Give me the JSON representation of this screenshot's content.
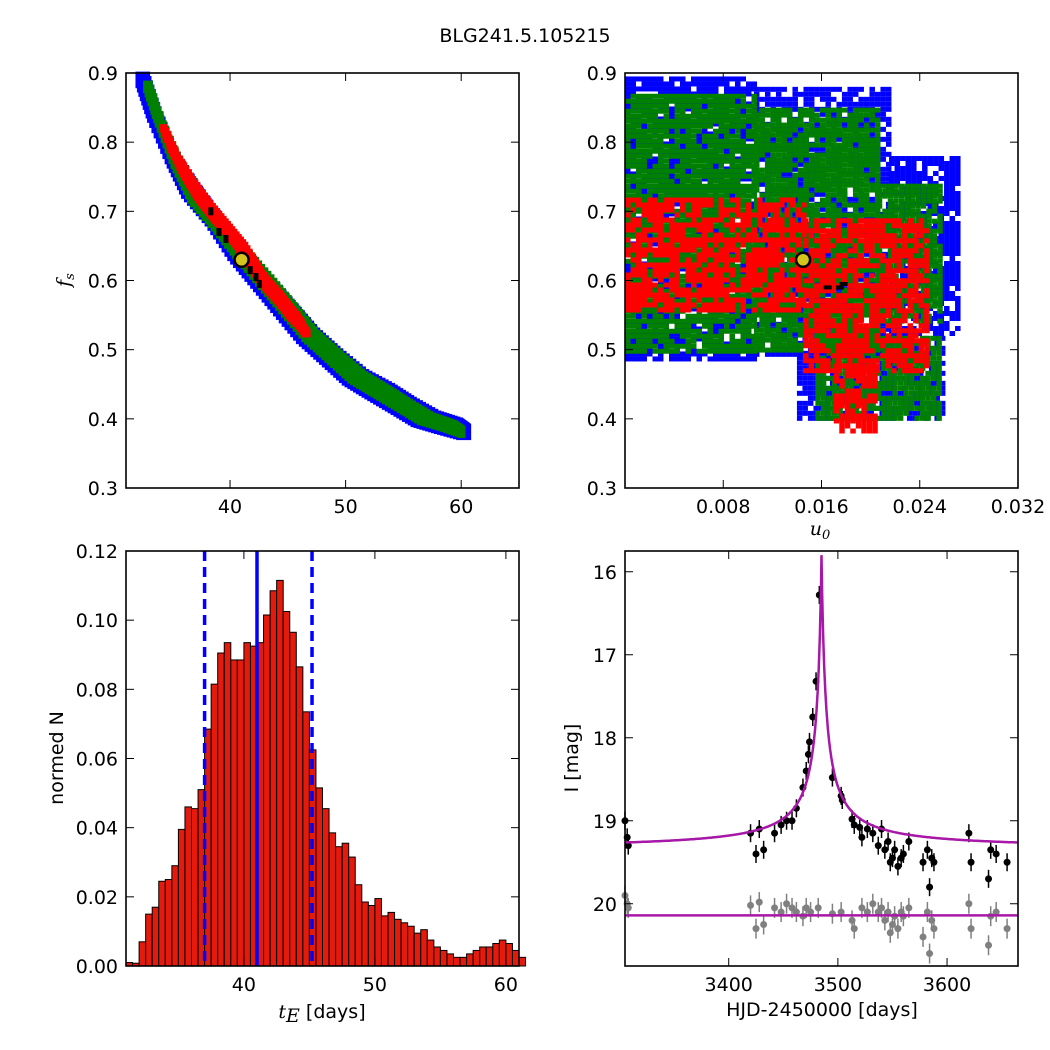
{
  "suptitle": "BLG241.5.105215",
  "colors": {
    "sigma1": "#ff0000",
    "sigma2": "#008000",
    "sigma3": "#0000ff",
    "best": "#000000",
    "marker_face": "#d4c41e",
    "hist_bar": "#e31a0c",
    "model": "#a818a8",
    "residual": "#808080"
  },
  "chart_data": [
    {
      "id": "fs_vs_tE",
      "type": "heatmap",
      "xlabel": "",
      "ylabel": "f_s",
      "xlim": [
        31,
        65
      ],
      "ylim": [
        0.3,
        0.9
      ],
      "xticks": [
        40,
        50,
        60
      ],
      "yticks": [
        0.3,
        0.4,
        0.5,
        0.6,
        0.7,
        0.8,
        0.9
      ],
      "bands": {
        "blue": [
          [
            32.0,
            0.89,
            32.9
          ],
          [
            33.0,
            0.84,
            33.9
          ],
          [
            34.5,
            0.78,
            35.3
          ],
          [
            36.0,
            0.73,
            37.2
          ],
          [
            38.0,
            0.69,
            39.0
          ],
          [
            40.0,
            0.64,
            41.2
          ],
          [
            42.0,
            0.6,
            43.3
          ],
          [
            44.0,
            0.56,
            45.4
          ],
          [
            46.0,
            0.52,
            47.5
          ],
          [
            48.0,
            0.49,
            49.5
          ],
          [
            50.0,
            0.46,
            51.7
          ],
          [
            52.0,
            0.44,
            53.9
          ],
          [
            54.0,
            0.42,
            55.8
          ],
          [
            56.0,
            0.4,
            57.9
          ],
          [
            58.0,
            0.39,
            59.8
          ],
          [
            60.0,
            0.38,
            60.8
          ]
        ],
        "green": [
          [
            32.6,
            0.88,
            33.2
          ],
          [
            33.6,
            0.83,
            34.2
          ],
          [
            35.0,
            0.77,
            35.8
          ],
          [
            36.5,
            0.72,
            37.6
          ],
          [
            38.5,
            0.68,
            39.4
          ],
          [
            40.4,
            0.64,
            41.5
          ],
          [
            42.4,
            0.6,
            43.6
          ],
          [
            44.4,
            0.56,
            45.6
          ],
          [
            46.4,
            0.52,
            47.6
          ],
          [
            48.4,
            0.49,
            49.6
          ],
          [
            50.4,
            0.46,
            51.7
          ],
          [
            52.4,
            0.44,
            53.7
          ],
          [
            54.4,
            0.42,
            55.6
          ],
          [
            56.4,
            0.4,
            57.6
          ],
          [
            58.4,
            0.39,
            59.4
          ],
          [
            60.0,
            0.38,
            60.4
          ]
        ],
        "red": [
          [
            34.0,
            0.82,
            34.5
          ],
          [
            35.0,
            0.78,
            35.6
          ],
          [
            36.3,
            0.74,
            37.1
          ],
          [
            37.5,
            0.71,
            38.4
          ],
          [
            39.0,
            0.68,
            39.9
          ],
          [
            40.5,
            0.65,
            41.4
          ],
          [
            42.0,
            0.61,
            42.9
          ],
          [
            43.5,
            0.58,
            44.4
          ],
          [
            45.0,
            0.55,
            45.9
          ],
          [
            46.5,
            0.52,
            47.0
          ]
        ]
      },
      "best_cells": [
        [
          38.3,
          0.7
        ],
        [
          39.0,
          0.67
        ],
        [
          39.6,
          0.66
        ],
        [
          41.0,
          0.625
        ],
        [
          41.7,
          0.615
        ],
        [
          42.2,
          0.605
        ],
        [
          42.5,
          0.595
        ]
      ],
      "marker": {
        "x": 41.0,
        "y": 0.63
      }
    },
    {
      "id": "fs_vs_u0",
      "type": "heatmap",
      "xlabel": "u_0",
      "ylabel": "",
      "xlim": [
        0,
        0.032
      ],
      "ylim": [
        0.3,
        0.9
      ],
      "xticks": [
        0.008,
        0.016,
        0.024,
        0.032
      ],
      "xticklabels": [
        "0.008",
        "0.016",
        "0.024",
        "0.032"
      ],
      "yticks": [
        0.3,
        0.4,
        0.5,
        0.6,
        0.7,
        0.8,
        0.9
      ],
      "regions": {
        "blue": [
          [
            0,
            0.49,
            0.0105,
            0.895
          ],
          [
            0.0105,
            0.49,
            0.0215,
            0.88
          ],
          [
            0.0215,
            0.52,
            0.027,
            0.78
          ],
          [
            0.014,
            0.4,
            0.026,
            0.52
          ]
        ],
        "green": [
          [
            0,
            0.5,
            0.0105,
            0.87
          ],
          [
            0.0105,
            0.5,
            0.0205,
            0.85
          ],
          [
            0.0205,
            0.54,
            0.0255,
            0.74
          ],
          [
            0.0155,
            0.4,
            0.0255,
            0.52
          ]
        ],
        "red": [
          [
            0,
            0.56,
            0.0145,
            0.72
          ],
          [
            0.0145,
            0.47,
            0.0245,
            0.69
          ],
          [
            0.017,
            0.38,
            0.0205,
            0.48
          ]
        ]
      },
      "best_cells": [
        [
          0.0165,
          0.59
        ],
        [
          0.0175,
          0.59
        ],
        [
          0.0178,
          0.595
        ]
      ],
      "marker": {
        "x": 0.0145,
        "y": 0.63
      }
    },
    {
      "id": "tE_histogram",
      "type": "bar",
      "xlabel": "t_E [days]",
      "ylabel": "normed N",
      "xlim": [
        31,
        61
      ],
      "ylim": [
        0,
        0.12
      ],
      "xticks": [
        40,
        50,
        60
      ],
      "yticks": [
        0.0,
        0.02,
        0.04,
        0.06,
        0.08,
        0.1,
        0.12
      ],
      "yticklabels": [
        "0.00",
        "0.02",
        "0.04",
        "0.06",
        "0.08",
        "0.10",
        "0.12"
      ],
      "bin_start": 31.0,
      "bin_width": 0.5,
      "values": [
        0.001,
        0.0008,
        0.007,
        0.015,
        0.017,
        0.0245,
        0.025,
        0.029,
        0.0395,
        0.046,
        0.0455,
        0.051,
        0.0685,
        0.0815,
        0.0905,
        0.0935,
        0.0885,
        0.0885,
        0.0935,
        0.0925,
        0.0935,
        0.1015,
        0.1085,
        0.1115,
        0.1025,
        0.0965,
        0.0865,
        0.0735,
        0.0625,
        0.0515,
        0.0455,
        0.0385,
        0.0345,
        0.0355,
        0.0315,
        0.0235,
        0.0185,
        0.0175,
        0.0195,
        0.0145,
        0.0155,
        0.0135,
        0.0125,
        0.0115,
        0.0095,
        0.0105,
        0.0075,
        0.0055,
        0.0045,
        0.0035,
        0.0025,
        0.0025,
        0.0035,
        0.0045,
        0.0055,
        0.0055,
        0.0065,
        0.0075,
        0.0065,
        0.0045,
        0.0025
      ],
      "median": 41.0,
      "lower": 37.0,
      "upper": 45.2
    },
    {
      "id": "lightcurve",
      "type": "scatter",
      "xlabel": "HJD-2450000 [days]",
      "ylabel": "I [mag]",
      "xlim": [
        3305,
        3665
      ],
      "ylim": [
        20.75,
        15.75
      ],
      "xticks": [
        3400,
        3500,
        3600
      ],
      "yticks": [
        16,
        17,
        18,
        19,
        20
      ],
      "model": {
        "t0": 3485.0,
        "baseline": 19.34,
        "peak": 15.8,
        "width": 6.5,
        "residual_level": 20.14
      },
      "points": [
        [
          3305,
          19.0
        ],
        [
          3307,
          19.2
        ],
        [
          3308,
          19.3
        ],
        [
          3420,
          19.15
        ],
        [
          3425,
          19.4
        ],
        [
          3428,
          19.1
        ],
        [
          3432,
          19.35
        ],
        [
          3442,
          19.15
        ],
        [
          3448,
          19.05
        ],
        [
          3453,
          19.0
        ],
        [
          3458,
          19.0
        ],
        [
          3462,
          18.85
        ],
        [
          3468,
          18.6
        ],
        [
          3471,
          18.4
        ],
        [
          3473,
          18.2
        ],
        [
          3474,
          18.05
        ],
        [
          3477,
          17.75
        ],
        [
          3480,
          17.32
        ],
        [
          3483,
          16.28
        ],
        [
          3495,
          18.48
        ],
        [
          3503,
          18.7
        ],
        [
          3504,
          18.75
        ],
        [
          3513,
          18.98
        ],
        [
          3515,
          19.05
        ],
        [
          3520,
          19.08
        ],
        [
          3522,
          19.2
        ],
        [
          3527,
          19.1
        ],
        [
          3532,
          19.15
        ],
        [
          3537,
          19.3
        ],
        [
          3540,
          19.1
        ],
        [
          3543,
          19.35
        ],
        [
          3546,
          19.25
        ],
        [
          3548,
          19.5
        ],
        [
          3550,
          19.45
        ],
        [
          3552,
          19.35
        ],
        [
          3555,
          19.55
        ],
        [
          3558,
          19.45
        ],
        [
          3560,
          19.4
        ],
        [
          3565,
          19.25
        ],
        [
          3578,
          19.5
        ],
        [
          3582,
          19.35
        ],
        [
          3584,
          19.8
        ],
        [
          3586,
          19.45
        ],
        [
          3588,
          19.5
        ],
        [
          3620,
          19.15
        ],
        [
          3622,
          19.5
        ],
        [
          3638,
          19.7
        ],
        [
          3640,
          19.35
        ],
        [
          3645,
          19.4
        ],
        [
          3655,
          19.5
        ]
      ],
      "residual_points": [
        [
          3305,
          19.9
        ],
        [
          3307,
          20.0
        ],
        [
          3308,
          20.05
        ],
        [
          3420,
          20.02
        ],
        [
          3425,
          20.3
        ],
        [
          3428,
          19.98
        ],
        [
          3432,
          20.25
        ],
        [
          3442,
          20.05
        ],
        [
          3448,
          20.1
        ],
        [
          3453,
          20.0
        ],
        [
          3458,
          20.05
        ],
        [
          3462,
          20.1
        ],
        [
          3468,
          20.15
        ],
        [
          3471,
          20.05
        ],
        [
          3475,
          20.1
        ],
        [
          3482,
          20.05
        ],
        [
          3495,
          20.12
        ],
        [
          3503,
          20.1
        ],
        [
          3513,
          20.2
        ],
        [
          3515,
          20.3
        ],
        [
          3522,
          20.05
        ],
        [
          3527,
          20.1
        ],
        [
          3532,
          20.0
        ],
        [
          3537,
          20.1
        ],
        [
          3540,
          20.05
        ],
        [
          3543,
          20.2
        ],
        [
          3546,
          20.1
        ],
        [
          3548,
          20.35
        ],
        [
          3550,
          20.25
        ],
        [
          3552,
          20.15
        ],
        [
          3555,
          20.3
        ],
        [
          3558,
          20.1
        ],
        [
          3560,
          20.15
        ],
        [
          3565,
          20.05
        ],
        [
          3578,
          20.4
        ],
        [
          3582,
          20.1
        ],
        [
          3584,
          20.6
        ],
        [
          3586,
          20.2
        ],
        [
          3588,
          20.3
        ],
        [
          3620,
          20.0
        ],
        [
          3622,
          20.3
        ],
        [
          3638,
          20.5
        ],
        [
          3640,
          20.15
        ],
        [
          3645,
          20.1
        ],
        [
          3655,
          20.3
        ]
      ]
    }
  ]
}
